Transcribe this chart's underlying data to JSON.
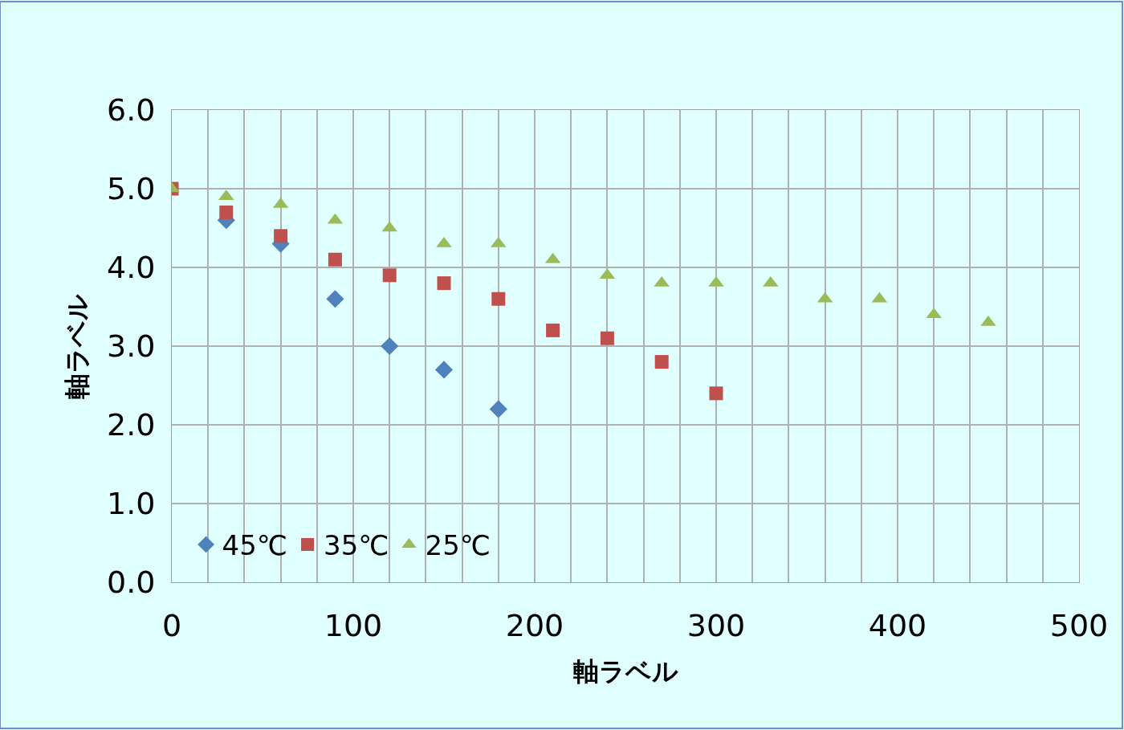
{
  "chart_data": {
    "type": "scatter",
    "xlabel": "軸ラベル",
    "ylabel": "軸ラベル",
    "series": [
      {
        "name": "45℃",
        "color": "#4f81bd",
        "marker": "diamond",
        "x": [
          30,
          60,
          90,
          120,
          150,
          180
        ],
        "values": [
          4.6,
          4.3,
          3.6,
          3.0,
          2.7,
          2.2
        ]
      },
      {
        "name": "35℃",
        "color": "#c0504d",
        "marker": "square",
        "x": [
          0,
          30,
          60,
          90,
          120,
          150,
          180,
          210,
          240,
          270,
          300
        ],
        "values": [
          5.0,
          4.7,
          4.4,
          4.1,
          3.9,
          3.8,
          3.6,
          3.2,
          3.1,
          2.8,
          2.4
        ]
      },
      {
        "name": "25℃",
        "color": "#9bbb59",
        "marker": "triangle",
        "x": [
          0,
          30,
          60,
          90,
          120,
          150,
          180,
          210,
          240,
          270,
          300,
          330,
          360,
          390,
          420,
          450
        ],
        "values": [
          5.0,
          4.9,
          4.8,
          4.6,
          4.5,
          4.3,
          4.3,
          4.1,
          3.9,
          3.8,
          3.8,
          3.8,
          3.6,
          3.6,
          3.4,
          3.3
        ]
      }
    ],
    "xlim": [
      0,
      500
    ],
    "xticks": [
      0,
      {
        "value": 20,
        "label": null
      },
      {
        "value": 40,
        "label": null
      },
      {
        "value": 60,
        "label": null
      },
      {
        "value": 80,
        "label": null
      },
      100,
      {
        "value": 120,
        "label": null
      },
      {
        "value": 140,
        "label": null
      },
      {
        "value": 160,
        "label": null
      },
      {
        "value": 180,
        "label": null
      },
      200,
      {
        "value": 220,
        "label": null
      },
      {
        "value": 240,
        "label": null
      },
      {
        "value": 260,
        "label": null
      },
      {
        "value": 280,
        "label": null
      },
      300,
      {
        "value": 320,
        "label": null
      },
      {
        "value": 340,
        "label": null
      },
      {
        "value": 360,
        "label": null
      },
      {
        "value": 380,
        "label": null
      },
      400,
      {
        "value": 420,
        "label": null
      },
      {
        "value": 440,
        "label": null
      },
      {
        "value": 460,
        "label": null
      },
      {
        "value": 480,
        "label": null
      },
      500
    ],
    "ylim": [
      0,
      6
    ],
    "yticks": [
      {
        "value": 0,
        "label": "0.0"
      },
      {
        "value": 1,
        "label": "1.0"
      },
      {
        "value": 2,
        "label": "2.0"
      },
      {
        "value": 3,
        "label": "3.0"
      },
      {
        "value": 4,
        "label": "4.0"
      },
      {
        "value": 5,
        "label": "5.0"
      },
      {
        "value": 6,
        "label": "6.0"
      }
    ],
    "grid": true,
    "legend": "bottom left"
  }
}
